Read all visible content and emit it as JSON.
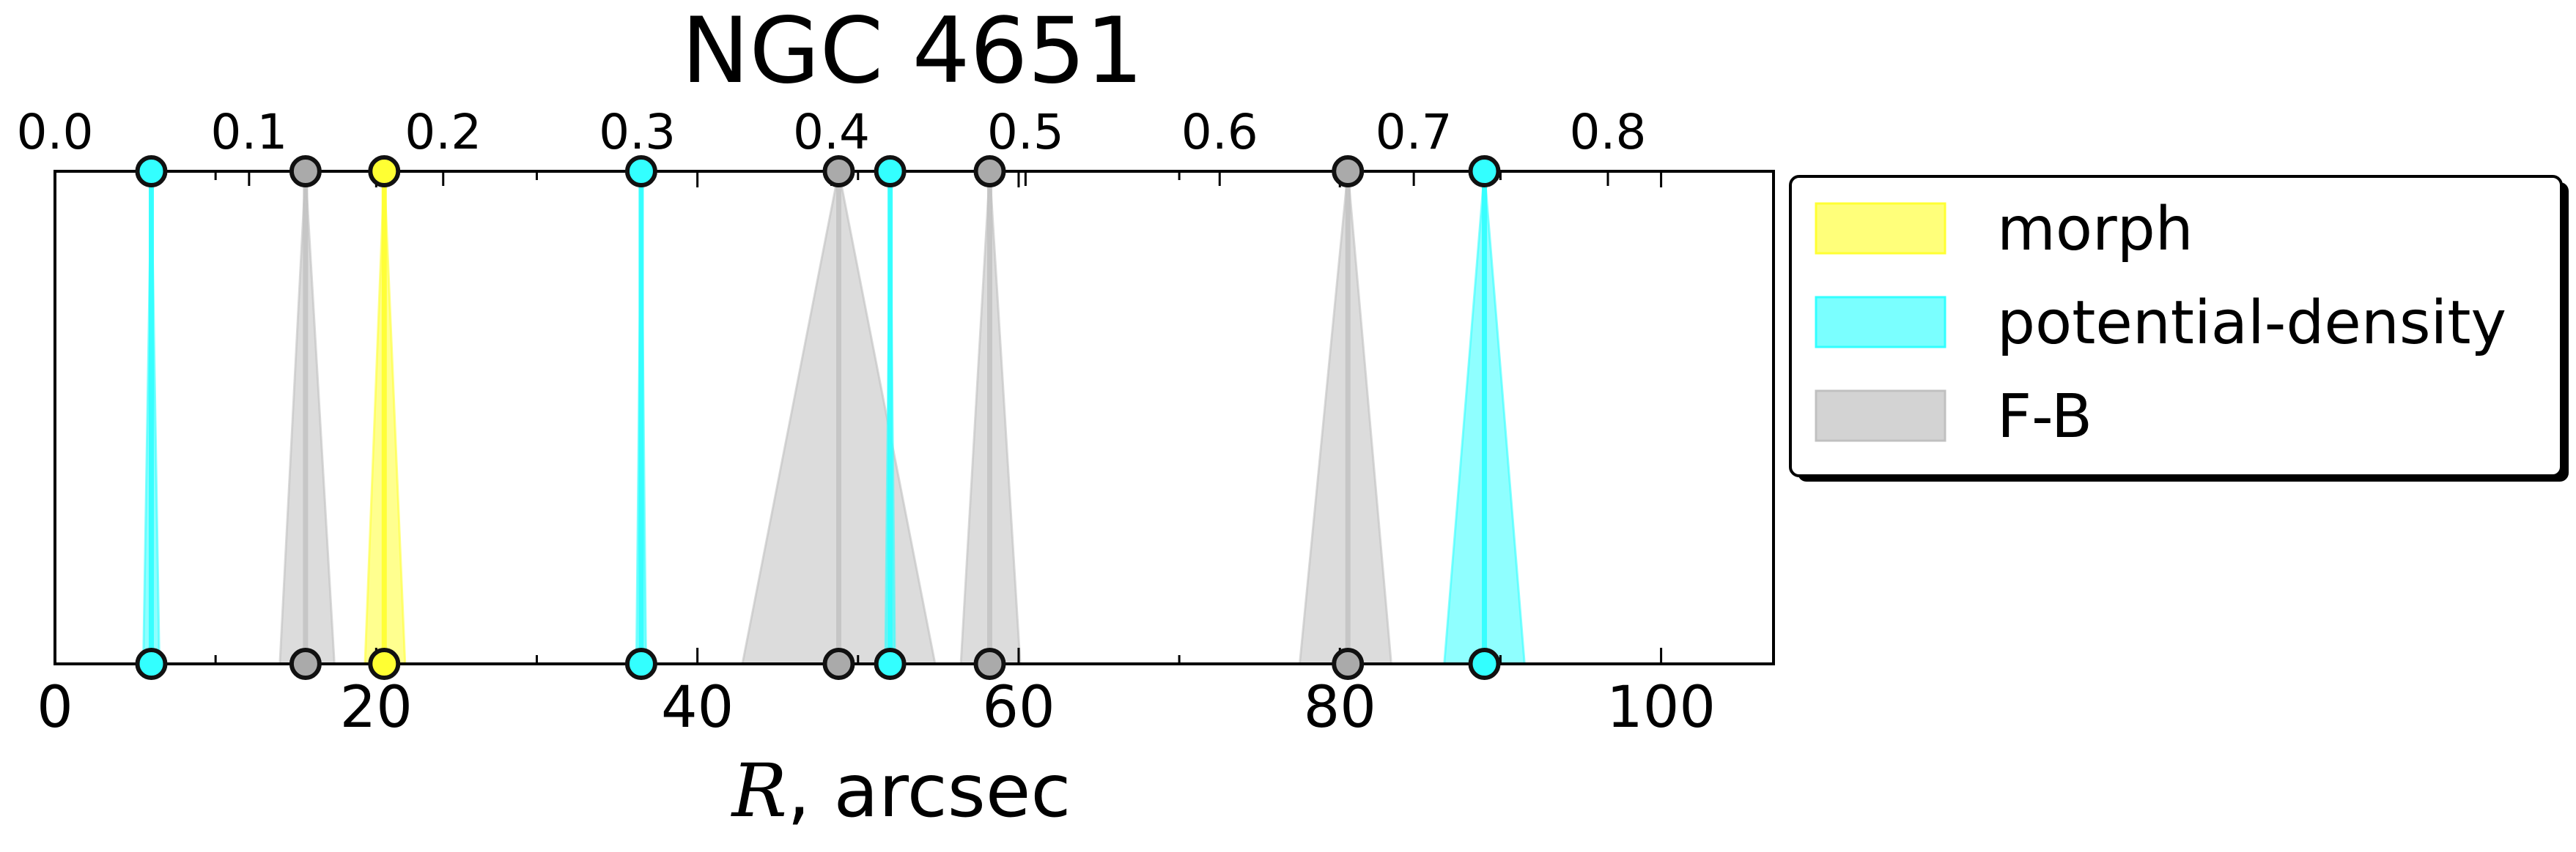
{
  "chart_data": {
    "type": "area",
    "title": "NGC 4651",
    "xlabel_var": "R",
    "xlabel_rest": ", arcsec",
    "xlim": [
      0,
      107
    ],
    "xticks_bottom": [
      0,
      20,
      40,
      60,
      80,
      100
    ],
    "top_axis": {
      "ticks": [
        0.0,
        0.1,
        0.2,
        0.3,
        0.4,
        0.5,
        0.6,
        0.7,
        0.8
      ],
      "tick_labels": [
        "0.0",
        "0.1",
        "0.2",
        "0.3",
        "0.4",
        "0.5",
        "0.6",
        "0.7",
        "0.8"
      ],
      "scale_per_x": 0.008274
    },
    "legend_placement": "outside right, top",
    "series": [
      {
        "name": "morph",
        "color": "#ffff33",
        "bands": [
          {
            "center": 20.5,
            "lower": 19.3,
            "upper": 21.8
          }
        ]
      },
      {
        "name": "potential-density",
        "color": "#33ffff",
        "bands": [
          {
            "center": 6.0,
            "lower": 5.5,
            "upper": 6.5
          },
          {
            "center": 36.5,
            "lower": 36.2,
            "upper": 36.8
          },
          {
            "center": 52.0,
            "lower": 51.7,
            "upper": 52.3
          },
          {
            "center": 89.0,
            "lower": 86.5,
            "upper": 91.5
          }
        ]
      },
      {
        "name": "F-B",
        "color": "#c0c0c0",
        "bands": [
          {
            "center": 15.6,
            "lower": 14.0,
            "upper": 17.4
          },
          {
            "center": 48.8,
            "lower": 42.8,
            "upper": 54.8
          },
          {
            "center": 58.2,
            "lower": 56.4,
            "upper": 60.1
          },
          {
            "center": 80.5,
            "lower": 77.5,
            "upper": 83.2
          }
        ]
      }
    ]
  }
}
